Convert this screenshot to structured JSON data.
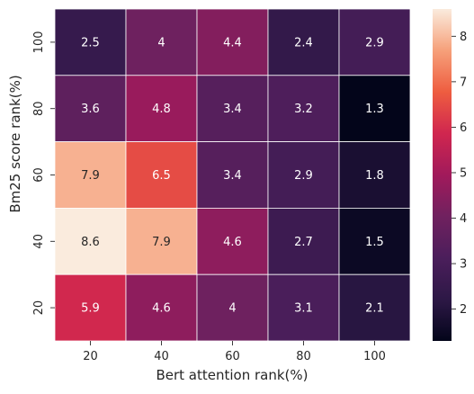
{
  "chart_data": {
    "type": "heatmap",
    "xlabel": "Bert attention rank(%)",
    "ylabel": "Bm25 score rank(%)",
    "x_categories": [
      "20",
      "40",
      "60",
      "80",
      "100"
    ],
    "y_categories": [
      "100",
      "80",
      "60",
      "40",
      "20"
    ],
    "values": [
      [
        2.5,
        4,
        4.4,
        2.4,
        2.9
      ],
      [
        3.6,
        4.8,
        3.4,
        3.2,
        1.3
      ],
      [
        7.9,
        6.5,
        3.4,
        2.9,
        1.8
      ],
      [
        8.6,
        7.9,
        4.6,
        2.7,
        1.5
      ],
      [
        5.9,
        4.6,
        4,
        3.1,
        2.1
      ]
    ],
    "annotations": true,
    "colormap": "rocket",
    "color_range": [
      1.3,
      8.6
    ],
    "colorbar_ticks": [
      "2",
      "3",
      "4",
      "5",
      "6",
      "7",
      "8"
    ],
    "grid": false,
    "legend": "colorbar-right"
  }
}
